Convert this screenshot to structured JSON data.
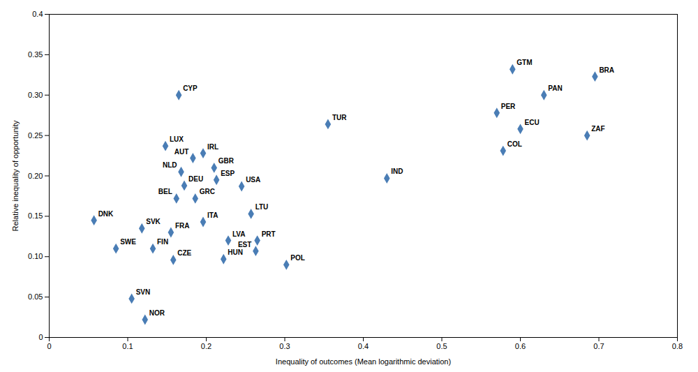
{
  "chart_data": {
    "type": "scatter",
    "x_label": "Inequality of outcomes (Mean logarithmic deviation)",
    "y_label": "Relative inequality of opportunity",
    "labels": [
      "DNK",
      "SWE",
      "SVN",
      "NOR",
      "SVK",
      "FIN",
      "CZE",
      "LUX",
      "BEL",
      "FRA",
      "CYP",
      "NLD",
      "DEU",
      "AUT",
      "GRC",
      "IRL",
      "ITA",
      "HUN",
      "LVA",
      "GBR",
      "ESP",
      "USA",
      "LTU",
      "EST",
      "PRT",
      "POL",
      "TUR",
      "IND",
      "PER",
      "COL",
      "GTM",
      "ECU",
      "PAN",
      "ZAF",
      "BRA"
    ],
    "x": [
      0.057,
      0.085,
      0.105,
      0.122,
      0.118,
      0.132,
      0.158,
      0.148,
      0.162,
      0.155,
      0.165,
      0.168,
      0.172,
      0.183,
      0.186,
      0.196,
      0.196,
      0.222,
      0.228,
      0.21,
      0.213,
      0.245,
      0.257,
      0.263,
      0.265,
      0.302,
      0.355,
      0.43,
      0.57,
      0.578,
      0.59,
      0.6,
      0.63,
      0.685,
      0.695
    ],
    "values": [
      0.145,
      0.11,
      0.048,
      0.022,
      0.135,
      0.11,
      0.096,
      0.237,
      0.172,
      0.13,
      0.3,
      0.205,
      0.188,
      0.222,
      0.172,
      0.228,
      0.143,
      0.097,
      0.12,
      0.21,
      0.195,
      0.187,
      0.153,
      0.107,
      0.12,
      0.09,
      0.264,
      0.197,
      0.278,
      0.231,
      0.332,
      0.258,
      0.3,
      0.25,
      0.323
    ],
    "color": "#4A7DB5",
    "marker": "diamond",
    "xlim": [
      0,
      0.8
    ],
    "ylim": [
      0,
      0.4
    ],
    "xticks": [
      0,
      0.1,
      0.2,
      0.3,
      0.4,
      0.5,
      0.6,
      0.7,
      0.8
    ],
    "yticks": [
      0,
      0.05,
      {
        "value": 0.1,
        "label": "0.10"
      },
      0.15,
      {
        "value": 0.2,
        "label": "0.20"
      },
      0.25,
      {
        "value": 0.3,
        "label": "0.30"
      },
      0.35,
      0.4
    ],
    "grid": false
  }
}
